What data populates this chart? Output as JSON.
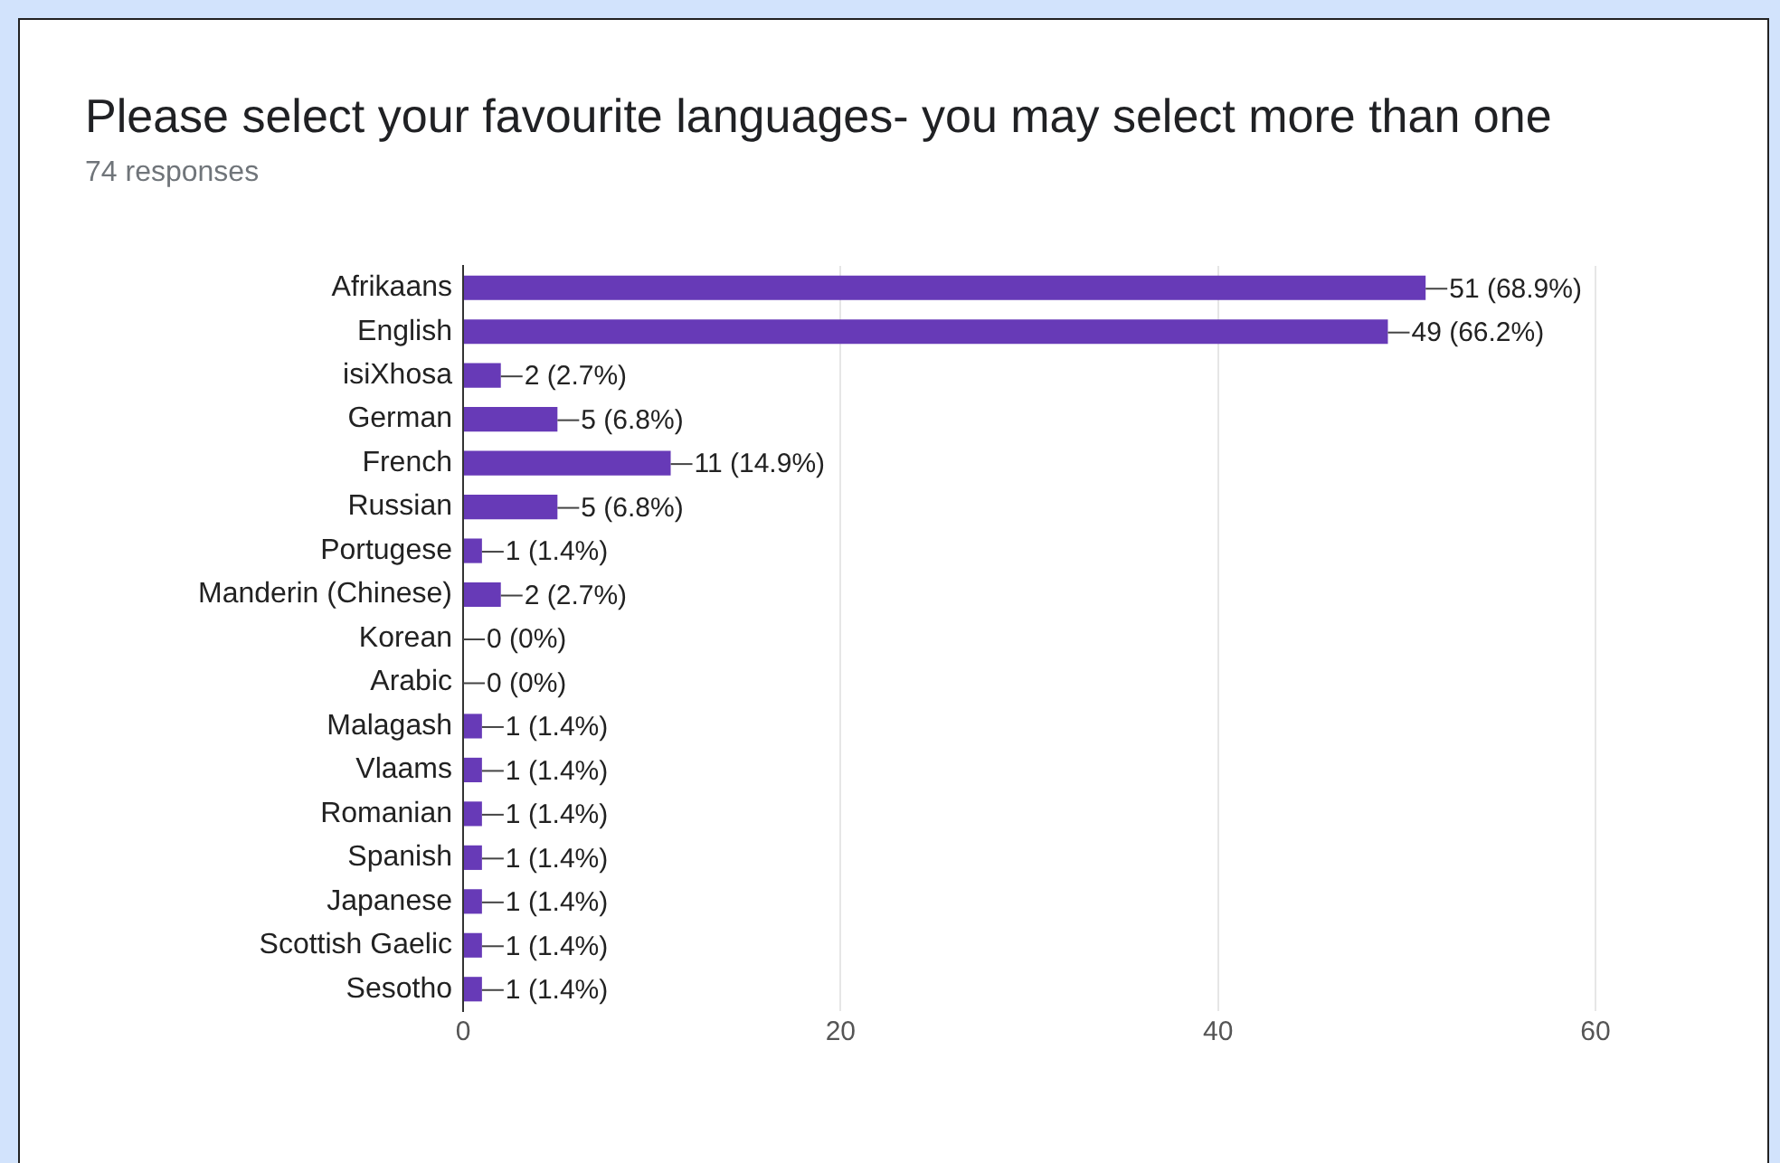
{
  "chart_data": {
    "type": "bar",
    "orientation": "horizontal",
    "title": "Please select your favourite languages- you may select more than one",
    "subtitle": "74 responses",
    "categories": [
      "Afrikaans",
      "English",
      "isiXhosa",
      "German",
      "French",
      "Russian",
      "Portugese",
      "Manderin (Chinese)",
      "Korean",
      "Arabic",
      "Malagash",
      "Vlaams",
      "Romanian",
      "Spanish",
      "Japanese",
      "Scottish Gaelic",
      "Sesotho"
    ],
    "values": [
      51,
      49,
      2,
      5,
      11,
      5,
      1,
      2,
      0,
      0,
      1,
      1,
      1,
      1,
      1,
      1,
      1
    ],
    "value_labels": [
      "51 (68.9%)",
      "49 (66.2%)",
      "2 (2.7%)",
      "5 (6.8%)",
      "11 (14.9%)",
      "5 (6.8%)",
      "1 (1.4%)",
      "2 (2.7%)",
      "0 (0%)",
      "0 (0%)",
      "1 (1.4%)",
      "1 (1.4%)",
      "1 (1.4%)",
      "1 (1.4%)",
      "1 (1.4%)",
      "1 (1.4%)",
      "1 (1.4%)"
    ],
    "color": "#673ab7",
    "xlim": [
      0,
      60
    ],
    "xticks": [
      0,
      20,
      40,
      60
    ],
    "grid": "x"
  }
}
